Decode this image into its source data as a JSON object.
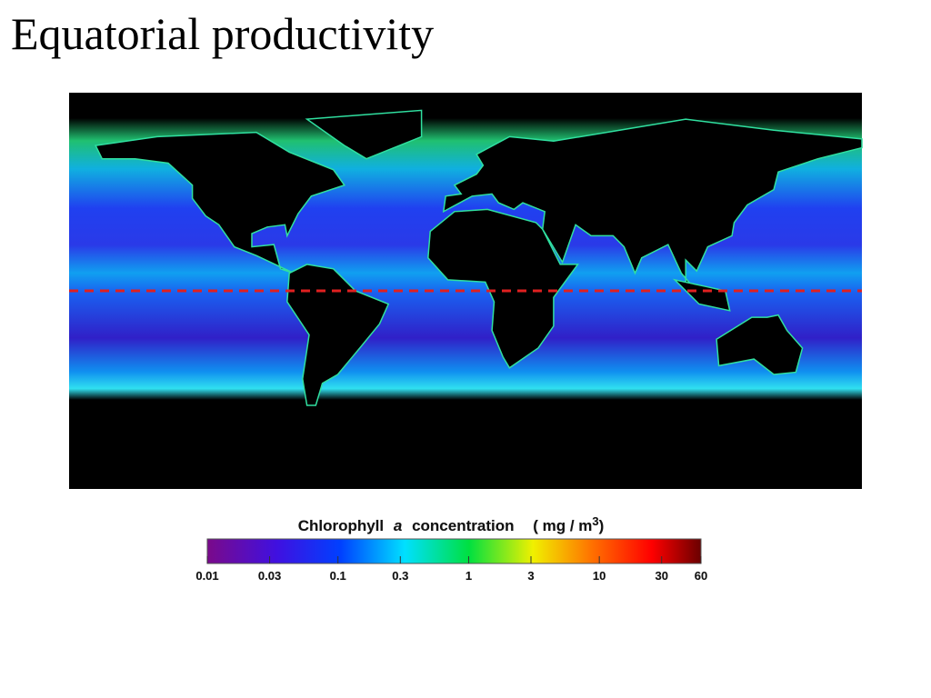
{
  "title": "Equatorial productivity",
  "colorbar": {
    "label": [
      "Chlorophyll",
      "a",
      "concentration",
      "( mg / m",
      "3",
      ")"
    ],
    "log": true,
    "range": [
      0.01,
      60
    ],
    "ticks": [
      0.01,
      0.03,
      0.1,
      0.3,
      1,
      3,
      10,
      30,
      60
    ]
  }
}
